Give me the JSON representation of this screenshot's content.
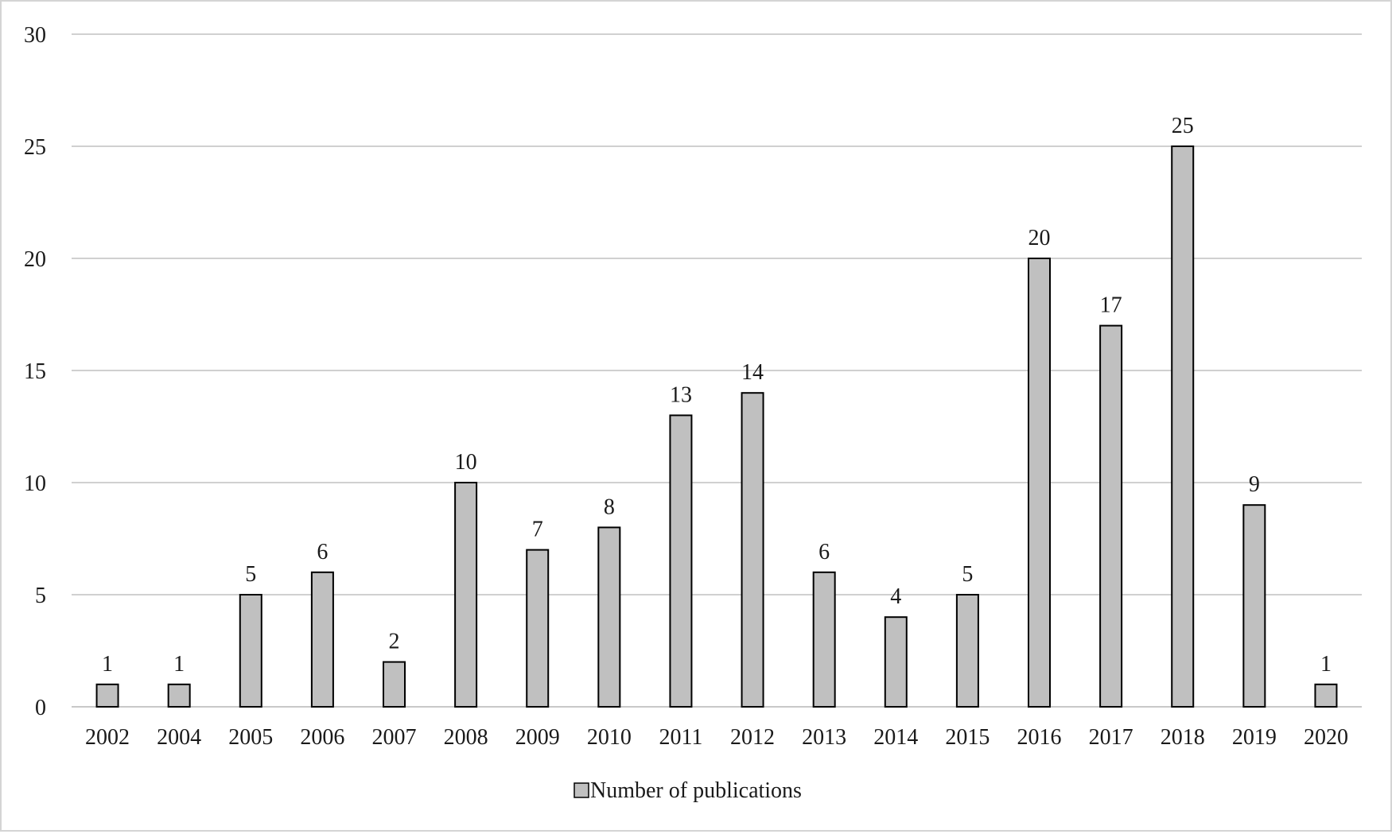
{
  "chart_data": {
    "type": "bar",
    "categories": [
      "2002",
      "2004",
      "2005",
      "2006",
      "2007",
      "2008",
      "2009",
      "2010",
      "2011",
      "2012",
      "2013",
      "2014",
      "2015",
      "2016",
      "2017",
      "2018",
      "2019",
      "2020"
    ],
    "series": [
      {
        "name": "Number of publications",
        "values": [
          1,
          1,
          5,
          6,
          2,
          10,
          7,
          8,
          13,
          14,
          6,
          4,
          5,
          20,
          17,
          25,
          9,
          1
        ]
      }
    ],
    "title": "",
    "xlabel": "",
    "ylabel": "",
    "ylim": [
      0,
      30
    ],
    "yticks": [
      0,
      5,
      10,
      15,
      20,
      25,
      30
    ],
    "grid": true,
    "legend": "bottom-center",
    "data_labels": true,
    "colors": {
      "bar_fill": "#c0c0c0",
      "bar_stroke": "#000000",
      "grid": "#d0d0d0",
      "text": "#1a1a1a"
    }
  }
}
